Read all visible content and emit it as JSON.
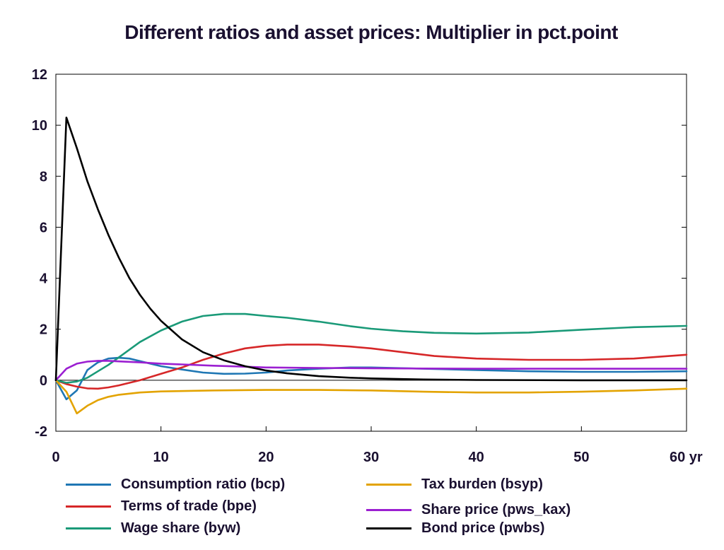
{
  "chart_data": {
    "type": "line",
    "title": "Different ratios and asset prices: Multiplier in pct.point",
    "xlabel": "",
    "ylabel": "",
    "xlim": [
      0,
      60
    ],
    "ylim": [
      -2,
      12
    ],
    "x_ticks": [
      0,
      10,
      20,
      30,
      40,
      50,
      60
    ],
    "x_tick_labels": [
      "0",
      "10",
      "20",
      "30",
      "40",
      "50",
      "60 yr"
    ],
    "y_ticks": [
      -2,
      0,
      2,
      4,
      6,
      8,
      10,
      12
    ],
    "y_tick_labels": [
      "-2",
      "0",
      "2",
      "4",
      "6",
      "8",
      "10",
      "12"
    ],
    "grid": false,
    "legend_position": "bottom",
    "series": [
      {
        "name": "Consumption ratio (bcp)",
        "color": "#1f77b4",
        "points": [
          [
            0,
            0
          ],
          [
            1,
            -0.75
          ],
          [
            2,
            -0.4
          ],
          [
            3,
            0.4
          ],
          [
            4,
            0.7
          ],
          [
            5,
            0.85
          ],
          [
            6,
            0.88
          ],
          [
            7,
            0.85
          ],
          [
            8,
            0.75
          ],
          [
            10,
            0.55
          ],
          [
            12,
            0.42
          ],
          [
            14,
            0.3
          ],
          [
            16,
            0.25
          ],
          [
            18,
            0.26
          ],
          [
            20,
            0.3
          ],
          [
            22,
            0.38
          ],
          [
            25,
            0.45
          ],
          [
            28,
            0.5
          ],
          [
            30,
            0.5
          ],
          [
            35,
            0.45
          ],
          [
            40,
            0.4
          ],
          [
            45,
            0.35
          ],
          [
            50,
            0.33
          ],
          [
            55,
            0.33
          ],
          [
            60,
            0.35
          ]
        ]
      },
      {
        "name": "Terms of trade (bpe)",
        "color": "#d62728",
        "points": [
          [
            0,
            0
          ],
          [
            1,
            -0.15
          ],
          [
            2,
            -0.25
          ],
          [
            3,
            -0.32
          ],
          [
            4,
            -0.33
          ],
          [
            5,
            -0.28
          ],
          [
            6,
            -0.2
          ],
          [
            8,
            0.0
          ],
          [
            10,
            0.25
          ],
          [
            12,
            0.5
          ],
          [
            14,
            0.8
          ],
          [
            16,
            1.05
          ],
          [
            18,
            1.25
          ],
          [
            20,
            1.35
          ],
          [
            22,
            1.4
          ],
          [
            25,
            1.4
          ],
          [
            28,
            1.32
          ],
          [
            30,
            1.25
          ],
          [
            33,
            1.1
          ],
          [
            36,
            0.95
          ],
          [
            40,
            0.85
          ],
          [
            45,
            0.8
          ],
          [
            50,
            0.8
          ],
          [
            55,
            0.85
          ],
          [
            60,
            1.0
          ]
        ]
      },
      {
        "name": "Wage share (byw)",
        "color": "#1a9a78",
        "points": [
          [
            0,
            0
          ],
          [
            1,
            -0.1
          ],
          [
            2,
            -0.05
          ],
          [
            3,
            0.1
          ],
          [
            4,
            0.35
          ],
          [
            5,
            0.6
          ],
          [
            6,
            0.9
          ],
          [
            7,
            1.2
          ],
          [
            8,
            1.5
          ],
          [
            10,
            1.95
          ],
          [
            12,
            2.3
          ],
          [
            14,
            2.52
          ],
          [
            16,
            2.6
          ],
          [
            18,
            2.6
          ],
          [
            20,
            2.52
          ],
          [
            22,
            2.45
          ],
          [
            25,
            2.3
          ],
          [
            28,
            2.12
          ],
          [
            30,
            2.02
          ],
          [
            33,
            1.92
          ],
          [
            36,
            1.86
          ],
          [
            40,
            1.83
          ],
          [
            45,
            1.87
          ],
          [
            50,
            1.98
          ],
          [
            55,
            2.08
          ],
          [
            60,
            2.13
          ]
        ]
      },
      {
        "name": "Tax burden (bsyp)",
        "color": "#e3a300",
        "points": [
          [
            0,
            0
          ],
          [
            1,
            -0.45
          ],
          [
            2,
            -1.3
          ],
          [
            3,
            -1.0
          ],
          [
            4,
            -0.78
          ],
          [
            5,
            -0.65
          ],
          [
            6,
            -0.57
          ],
          [
            8,
            -0.48
          ],
          [
            10,
            -0.44
          ],
          [
            15,
            -0.4
          ],
          [
            20,
            -0.38
          ],
          [
            25,
            -0.38
          ],
          [
            30,
            -0.4
          ],
          [
            35,
            -0.45
          ],
          [
            40,
            -0.48
          ],
          [
            45,
            -0.48
          ],
          [
            50,
            -0.45
          ],
          [
            55,
            -0.4
          ],
          [
            60,
            -0.33
          ]
        ]
      },
      {
        "name": "Share price (pws_kax)",
        "color": "#9b1fd1",
        "points": [
          [
            0,
            0
          ],
          [
            1,
            0.45
          ],
          [
            2,
            0.65
          ],
          [
            3,
            0.73
          ],
          [
            4,
            0.76
          ],
          [
            5,
            0.76
          ],
          [
            6,
            0.74
          ],
          [
            8,
            0.7
          ],
          [
            10,
            0.65
          ],
          [
            12,
            0.62
          ],
          [
            15,
            0.57
          ],
          [
            18,
            0.53
          ],
          [
            20,
            0.5
          ],
          [
            25,
            0.48
          ],
          [
            30,
            0.47
          ],
          [
            35,
            0.46
          ],
          [
            40,
            0.45
          ],
          [
            45,
            0.45
          ],
          [
            50,
            0.45
          ],
          [
            55,
            0.45
          ],
          [
            60,
            0.45
          ]
        ]
      },
      {
        "name": "Bond price (pwbs)",
        "color": "#000000",
        "points": [
          [
            0,
            0
          ],
          [
            1,
            10.3
          ],
          [
            2,
            9.1
          ],
          [
            3,
            7.8
          ],
          [
            4,
            6.7
          ],
          [
            5,
            5.7
          ],
          [
            6,
            4.8
          ],
          [
            7,
            4.0
          ],
          [
            8,
            3.35
          ],
          [
            9,
            2.8
          ],
          [
            10,
            2.33
          ],
          [
            12,
            1.6
          ],
          [
            14,
            1.1
          ],
          [
            16,
            0.78
          ],
          [
            18,
            0.55
          ],
          [
            20,
            0.38
          ],
          [
            22,
            0.27
          ],
          [
            25,
            0.16
          ],
          [
            28,
            0.1
          ],
          [
            30,
            0.07
          ],
          [
            35,
            0.03
          ],
          [
            40,
            0.01
          ],
          [
            50,
            0.0
          ],
          [
            60,
            0.0
          ]
        ]
      }
    ]
  }
}
